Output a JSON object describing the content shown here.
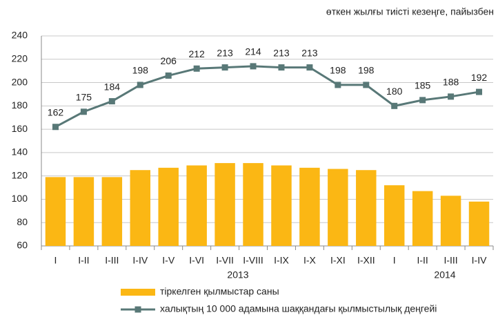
{
  "chart_data": {
    "type": "bar_line",
    "subtitle": "өткен жылғы тиісті кезеңге, пайызбен",
    "categories": [
      "I",
      "I-II",
      "I-III",
      "I-IV",
      "I-V",
      "I-VI",
      "I-VII",
      "I-VIII",
      "I-IX",
      "I-X",
      "I-XI",
      "I-XII",
      "I",
      "I-II",
      "I-III",
      "I-IV"
    ],
    "x_groups": [
      "2013",
      "2014"
    ],
    "series": [
      {
        "name": "тіркелген қылмыстар саны",
        "type": "bar",
        "color": "#fbb714",
        "values": [
          119,
          119,
          119,
          125,
          127,
          129,
          131,
          131,
          129,
          127,
          126,
          125,
          112,
          107,
          103,
          98
        ]
      },
      {
        "name": "халықтың 10 000 адамына шаққандағы қылмыстылық деңгейі",
        "type": "line",
        "color": "#587877",
        "values": [
          162,
          175,
          184,
          198,
          206,
          212,
          213,
          214,
          213,
          213,
          198,
          198,
          180,
          185,
          188,
          192
        ]
      }
    ],
    "ylim": [
      60,
      240
    ],
    "yticks": [
      60,
      80,
      100,
      120,
      140,
      160,
      180,
      200,
      220,
      240
    ],
    "grid": true
  }
}
